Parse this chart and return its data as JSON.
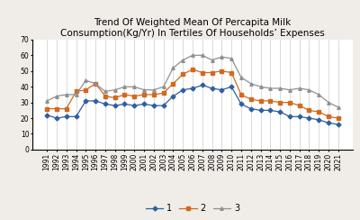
{
  "title_line1": "Trend Of Weighted Mean Of Percapita Milk",
  "title_line2": "Consumption(Kg/Yr) In Tertiles Of Households’ Expenses",
  "years": [
    1991,
    1992,
    1993,
    1994,
    1995,
    1996,
    1997,
    1998,
    1999,
    2000,
    2001,
    2002,
    2003,
    2004,
    2005,
    2006,
    2007,
    2008,
    2009,
    2010,
    2011,
    2012,
    2013,
    2014,
    2015,
    2016,
    2017,
    2018,
    2019,
    2020,
    2021
  ],
  "series1": [
    22,
    20,
    21,
    21,
    31,
    31,
    29,
    28,
    29,
    28,
    29,
    28,
    28,
    34,
    38,
    39,
    41,
    39,
    38,
    40,
    29,
    26,
    25,
    25,
    24,
    21,
    21,
    20,
    19,
    17,
    16
  ],
  "series2": [
    26,
    26,
    26,
    37,
    38,
    42,
    34,
    33,
    35,
    34,
    35,
    35,
    36,
    42,
    48,
    51,
    49,
    49,
    50,
    49,
    35,
    32,
    31,
    31,
    30,
    30,
    28,
    25,
    24,
    21,
    20
  ],
  "series3": [
    31,
    34,
    35,
    35,
    44,
    42,
    37,
    38,
    40,
    40,
    38,
    38,
    40,
    52,
    57,
    60,
    60,
    57,
    59,
    58,
    46,
    42,
    40,
    39,
    39,
    38,
    39,
    38,
    35,
    30,
    27
  ],
  "color1": "#2e5fa3",
  "color2": "#d2691e",
  "color3": "#909090",
  "marker1": "D",
  "marker2": "s",
  "marker3": "^",
  "ylim": [
    0,
    70
  ],
  "yticks": [
    0,
    10,
    20,
    30,
    40,
    50,
    60,
    70
  ],
  "legend_labels": [
    "1",
    "2",
    "3"
  ],
  "bg_color": "#f0ede8",
  "plot_bg_color": "#ffffff",
  "grid_color": "#cccccc",
  "title_fontsize": 7.5,
  "legend_fontsize": 7.0,
  "tick_fontsize": 5.5,
  "markersize": 2.5,
  "linewidth": 0.9
}
